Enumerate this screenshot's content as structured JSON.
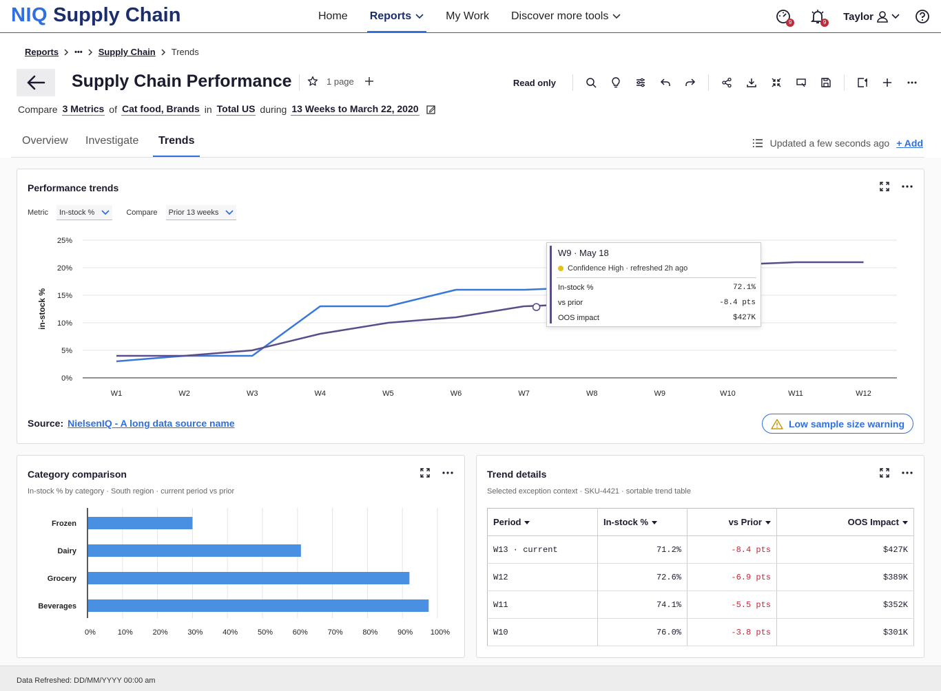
{
  "brand": {
    "niq": "NIQ",
    "rest": "Supply Chain"
  },
  "nav": {
    "home": "Home",
    "reports": "Reports",
    "my_work": "My Work",
    "discover": "Discover more tools"
  },
  "navright": {
    "notif_count_1": "9",
    "notif_count_2": "9",
    "user": "Taylor"
  },
  "breadcrumb": {
    "reports": "Reports",
    "ellipsis": "•••",
    "supply_chain": "Supply Chain",
    "current": "Trends"
  },
  "page": {
    "title": "Supply Chain Performance",
    "page_count": "1 page",
    "read_only": "Read only"
  },
  "compare": {
    "label_compare": "Compare",
    "metrics": "3 Metrics",
    "of": "of",
    "products": "Cat food, Brands",
    "in": "in",
    "market": "Total US",
    "during": "during",
    "period": "13 Weeks to March 22, 2020"
  },
  "tabs": {
    "overview": "Overview",
    "investigate": "Investigate",
    "trends": "Trends"
  },
  "status": {
    "updated": "Updated a few seconds ago",
    "add": "+ Add"
  },
  "perf_card": {
    "title": "Performance trends",
    "metric_label": "Metric",
    "metric_value": "In-stock %",
    "compare_label": "Compare",
    "compare_value": "Prior 13 weeks",
    "source_label": "Source:",
    "source_link": "NielsenIQ - A long data source name",
    "warning": "Low sample size warning"
  },
  "tooltip": {
    "title": "W9 · May 18",
    "confidence": "Confidence High · refreshed 2h ago",
    "rows": [
      {
        "label": "In-stock %",
        "value": "72.1%"
      },
      {
        "label": "vs prior",
        "value": "-8.4 pts"
      },
      {
        "label": "OOS impact",
        "value": "$427K"
      }
    ]
  },
  "category_card": {
    "title": "Category comparison",
    "subtitle": "In-stock % by category · South region · current period vs prior"
  },
  "trend_card": {
    "title": "Trend details",
    "subtitle": "Selected exception context · SKU-4421 · sortable trend table",
    "headers": [
      "Period",
      "In-stock %",
      "vs Prior",
      "OOS Impact"
    ],
    "rows": [
      [
        "W13 · current",
        "71.2%",
        "-8.4 pts",
        "$427K"
      ],
      [
        "W12",
        "72.6%",
        "-6.9 pts",
        "$389K"
      ],
      [
        "W11",
        "74.1%",
        "-5.5 pts",
        "$352K"
      ],
      [
        "W10",
        "76.0%",
        "-3.8 pts",
        "$301K"
      ]
    ]
  },
  "footer": {
    "text": "Data Refreshed: DD/MM/YYYY 00:00 am"
  },
  "colors": {
    "accent": "#2f6fe0",
    "brand_dark": "#1c2d6b",
    "line_current": "#3a78d8",
    "line_prior": "#5a4d8a",
    "bar": "#4a90e2",
    "negative": "#c0293a"
  },
  "chart_data": [
    {
      "type": "line",
      "ylabel": "in-stock %",
      "categories": [
        "W1",
        "W2",
        "W3",
        "W4",
        "W5",
        "W6",
        "W7",
        "W8",
        "W9",
        "W10",
        "W11",
        "W12"
      ],
      "y_ticks": [
        "0%",
        "5%",
        "10%",
        "15%",
        "20%",
        "25%"
      ],
      "ylim": [
        0,
        25
      ],
      "grid": true,
      "series": [
        {
          "key": "current",
          "values": [
            3,
            4,
            4,
            13,
            13,
            16,
            16,
            16.5,
            null,
            null,
            null,
            null
          ]
        },
        {
          "key": "prior",
          "values": [
            4,
            4,
            5,
            8,
            10,
            11,
            13,
            13.5,
            null,
            20.5,
            21,
            21
          ]
        }
      ],
      "highlight": {
        "series": "prior",
        "index": 6
      }
    },
    {
      "type": "bar",
      "orientation": "horizontal",
      "categories": [
        "Frozen",
        "Dairy",
        "Grocery",
        "Beverages"
      ],
      "values": [
        30,
        61,
        92,
        97.5
      ],
      "x_ticks": [
        "0%",
        "10%",
        "20%",
        "30%",
        "40%",
        "50%",
        "60%",
        "70%",
        "80%",
        "90%",
        "100%"
      ],
      "xlim": [
        0,
        100
      ],
      "grid": true
    }
  ]
}
